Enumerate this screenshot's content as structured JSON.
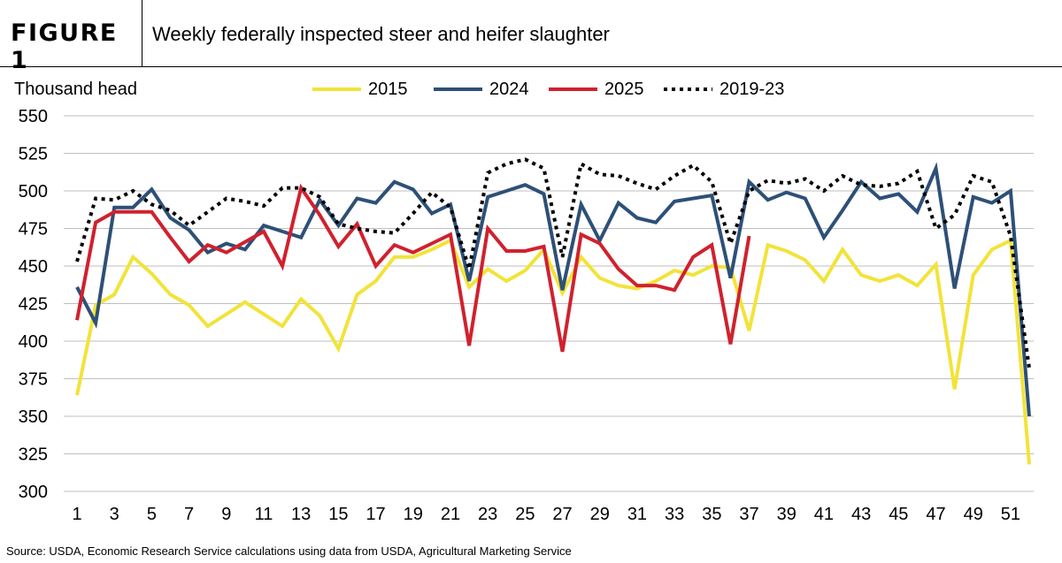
{
  "figure": {
    "label": "FIGURE 1",
    "title": "Weekly federally inspected steer and heifer slaughter"
  },
  "source": "Source: USDA, Economic Research Service calculations using data from USDA, Agricultural Marketing Service",
  "chart_data": {
    "type": "line",
    "ylabel": "Thousand head",
    "ylim": [
      300,
      550
    ],
    "yticks": [
      300,
      325,
      350,
      375,
      400,
      425,
      450,
      475,
      500,
      525,
      550
    ],
    "xlim": [
      1,
      52
    ],
    "xticks": [
      1,
      3,
      5,
      7,
      9,
      11,
      13,
      15,
      17,
      19,
      21,
      23,
      25,
      27,
      29,
      31,
      33,
      35,
      37,
      39,
      41,
      43,
      45,
      47,
      49,
      51
    ],
    "grid": "horizontal",
    "legend_position": "top",
    "series": [
      {
        "name": "2015",
        "color": "#F2E33A",
        "style": "solid",
        "x": [
          1,
          2,
          3,
          4,
          5,
          6,
          7,
          8,
          9,
          10,
          11,
          12,
          13,
          14,
          15,
          16,
          17,
          18,
          19,
          20,
          21,
          22,
          23,
          24,
          25,
          26,
          27,
          28,
          29,
          30,
          31,
          32,
          33,
          34,
          35,
          36,
          37,
          38,
          39,
          40,
          41,
          42,
          43,
          44,
          45,
          46,
          47,
          48,
          49,
          50,
          51,
          52
        ],
        "values": [
          364,
          424,
          431,
          456,
          445,
          431,
          424,
          410,
          418,
          426,
          418,
          410,
          428,
          417,
          395,
          431,
          440,
          456,
          456,
          461,
          467,
          436,
          448,
          440,
          447,
          461,
          432,
          456,
          442,
          437,
          435,
          440,
          447,
          444,
          450,
          449,
          407,
          464,
          460,
          454,
          440,
          461,
          444,
          440,
          444,
          437,
          451,
          368,
          444,
          461,
          467,
          318
        ]
      },
      {
        "name": "2024",
        "color": "#2E5077",
        "style": "solid",
        "x": [
          1,
          2,
          3,
          4,
          5,
          6,
          7,
          8,
          9,
          10,
          11,
          12,
          13,
          14,
          15,
          16,
          17,
          18,
          19,
          20,
          21,
          22,
          23,
          24,
          25,
          26,
          27,
          28,
          29,
          30,
          31,
          32,
          33,
          34,
          35,
          36,
          37,
          38,
          39,
          40,
          41,
          42,
          43,
          44,
          45,
          46,
          47,
          48,
          49,
          50,
          51,
          52
        ],
        "values": [
          436,
          412,
          489,
          489,
          501,
          482,
          474,
          459,
          465,
          461,
          477,
          473,
          469,
          494,
          477,
          495,
          492,
          506,
          501,
          485,
          491,
          440,
          496,
          500,
          504,
          498,
          434,
          491,
          467,
          492,
          482,
          479,
          493,
          495,
          497,
          442,
          506,
          494,
          499,
          495,
          469,
          487,
          506,
          495,
          498,
          486,
          515,
          435,
          496,
          492,
          500,
          350
        ]
      },
      {
        "name": "2025",
        "color": "#D0212E",
        "style": "solid",
        "x": [
          1,
          2,
          3,
          4,
          5,
          6,
          7,
          8,
          9,
          10,
          11,
          12,
          13,
          14,
          15,
          16,
          17,
          18,
          19,
          20,
          21,
          22,
          23,
          24,
          25,
          26,
          27,
          28,
          29,
          30,
          31,
          32,
          33,
          34,
          35,
          36,
          37
        ],
        "values": [
          414,
          479,
          486,
          486,
          486,
          469,
          453,
          464,
          459,
          466,
          473,
          450,
          502,
          484,
          463,
          478,
          450,
          464,
          459,
          465,
          471,
          397,
          475,
          460,
          460,
          463,
          393,
          471,
          465,
          448,
          437,
          437,
          434,
          456,
          464,
          398,
          470
        ]
      },
      {
        "name": "2019-23",
        "color": "#000000",
        "style": "dotted",
        "x": [
          1,
          2,
          3,
          4,
          5,
          6,
          7,
          8,
          9,
          10,
          11,
          12,
          13,
          14,
          15,
          16,
          17,
          18,
          19,
          20,
          21,
          22,
          23,
          24,
          25,
          26,
          27,
          28,
          29,
          30,
          31,
          32,
          33,
          34,
          35,
          36,
          37,
          38,
          39,
          40,
          41,
          42,
          43,
          44,
          45,
          46,
          47,
          48,
          49,
          50,
          51,
          52
        ],
        "values": [
          453,
          495,
          494,
          500,
          491,
          487,
          477,
          486,
          495,
          493,
          490,
          502,
          502,
          496,
          478,
          475,
          473,
          472,
          485,
          499,
          489,
          448,
          512,
          518,
          521,
          515,
          456,
          518,
          511,
          510,
          505,
          501,
          510,
          517,
          506,
          465,
          500,
          507,
          505,
          508,
          500,
          510,
          504,
          503,
          505,
          513,
          475,
          484,
          510,
          506,
          470,
          382
        ]
      }
    ]
  }
}
